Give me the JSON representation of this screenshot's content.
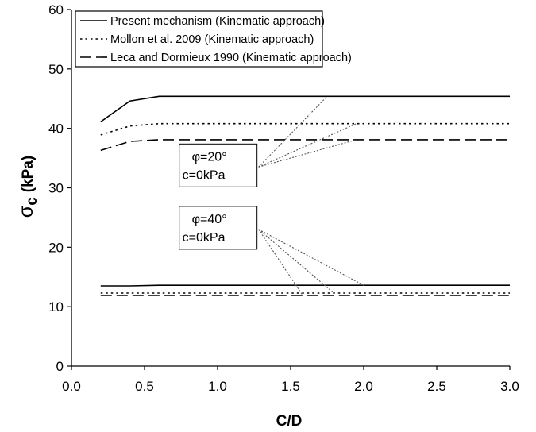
{
  "chart_data": {
    "type": "line",
    "xlabel": "C/D",
    "ylabel_main": "σ",
    "ylabel_sub": "c",
    "ylabel_unit": "(kPa)",
    "xlim": [
      0,
      3.0
    ],
    "ylim": [
      0,
      60
    ],
    "xticks": [
      "0.0",
      "0.5",
      "1.0",
      "1.5",
      "2.0",
      "2.5",
      "3.0"
    ],
    "yticks": [
      "0",
      "10",
      "20",
      "30",
      "40",
      "50",
      "60"
    ],
    "grid": false,
    "legend_position": "top-left",
    "series": [
      {
        "name": "Present mechanism (Kinematic approach)",
        "style": "solid",
        "group": "phi20",
        "x": [
          0.2,
          0.4,
          0.6,
          0.8,
          1.0,
          1.5,
          2.0,
          2.5,
          3.0
        ],
        "y": [
          41.1,
          44.6,
          45.4,
          45.4,
          45.4,
          45.4,
          45.4,
          45.4,
          45.4
        ]
      },
      {
        "name": "Mollon et al. 2009 (Kinematic approach)",
        "style": "dotted",
        "group": "phi20",
        "x": [
          0.2,
          0.4,
          0.6,
          0.8,
          1.0,
          1.5,
          2.0,
          2.5,
          3.0
        ],
        "y": [
          38.9,
          40.4,
          40.8,
          40.8,
          40.8,
          40.8,
          40.8,
          40.8,
          40.8
        ]
      },
      {
        "name": "Leca and Dormieux 1990 (Kinematic approach)",
        "style": "dashed",
        "group": "phi20",
        "x": [
          0.2,
          0.4,
          0.6,
          0.8,
          1.0,
          1.5,
          2.0,
          2.5,
          3.0
        ],
        "y": [
          36.3,
          37.8,
          38.1,
          38.1,
          38.1,
          38.1,
          38.1,
          38.1,
          38.1
        ]
      },
      {
        "name": "Present mechanism (Kinematic approach)",
        "style": "solid",
        "group": "phi40",
        "x": [
          0.2,
          0.4,
          0.6,
          1.0,
          1.5,
          2.0,
          2.5,
          3.0
        ],
        "y": [
          13.5,
          13.5,
          13.6,
          13.6,
          13.6,
          13.6,
          13.6,
          13.6
        ]
      },
      {
        "name": "Mollon et al. 2009 (Kinematic approach)",
        "style": "dotted",
        "group": "phi40",
        "x": [
          0.2,
          0.4,
          0.6,
          1.0,
          1.5,
          2.0,
          2.5,
          3.0
        ],
        "y": [
          12.3,
          12.3,
          12.3,
          12.3,
          12.3,
          12.3,
          12.3,
          12.3
        ]
      },
      {
        "name": "Leca and Dormieux 1990 (Kinematic approach)",
        "style": "dashed",
        "group": "phi40",
        "x": [
          0.2,
          0.4,
          0.6,
          1.0,
          1.5,
          2.0,
          2.5,
          3.0
        ],
        "y": [
          11.9,
          11.9,
          11.9,
          11.9,
          11.9,
          11.9,
          11.9,
          11.9
        ]
      }
    ],
    "legend": [
      {
        "label": "Present mechanism (Kinematic approach)",
        "style": "solid"
      },
      {
        "label": "Mollon et al. 2009 (Kinematic approach)",
        "style": "dotted"
      },
      {
        "label": "Leca and Dormieux 1990 (Kinematic approach)",
        "style": "dashed"
      }
    ],
    "annotations": [
      {
        "line1": "φ=20°",
        "line2": "c=0kPa",
        "anchor": [
          1.27,
          33.5
        ],
        "pointers": [
          [
            1.75,
            45.4
          ],
          [
            1.95,
            40.8
          ],
          [
            1.95,
            38.1
          ]
        ]
      },
      {
        "line1": "φ=40°",
        "line2": "c=0kPa",
        "anchor": [
          1.27,
          23.0
        ],
        "pointers": [
          [
            1.58,
            12.0
          ],
          [
            1.8,
            12.2
          ],
          [
            2.0,
            13.6
          ]
        ]
      }
    ]
  }
}
